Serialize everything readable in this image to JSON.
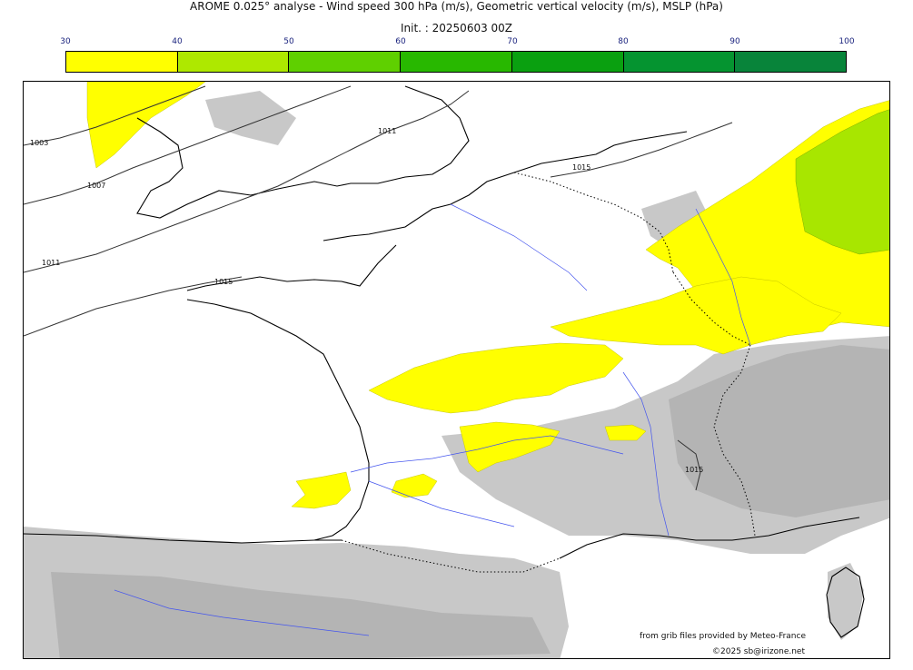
{
  "header": {
    "title": "AROME 0.025° analyse - Wind speed 300 hPa (m/s), Geometric vertical velocity (m/s), MSLP (hPa)",
    "init": "Init. : 20250603 00Z"
  },
  "colorbar": {
    "ticks": [
      "30",
      "40",
      "50",
      "60",
      "70",
      "80",
      "90",
      "100"
    ],
    "colors": [
      "#ffff00",
      "#aee800",
      "#5fd000",
      "#28b800",
      "#0aa010",
      "#059430",
      "#08843a"
    ]
  },
  "isobars": [
    "1003",
    "1007",
    "1011",
    "1015",
    "1011",
    "1015",
    "1015"
  ],
  "credits": {
    "source": "from grib files provided by Meteo-France",
    "copyright": "©2025 sb@irizone.net"
  },
  "palette": {
    "jet_yellow": "#ffff00",
    "jet_green": "#a8e600",
    "vertical_velocity_gray": "#c8c8c8",
    "terrain_gray": "#b4b4b4",
    "coast": "#000000",
    "rivers": "#4455ee",
    "isobars": "#333333"
  }
}
